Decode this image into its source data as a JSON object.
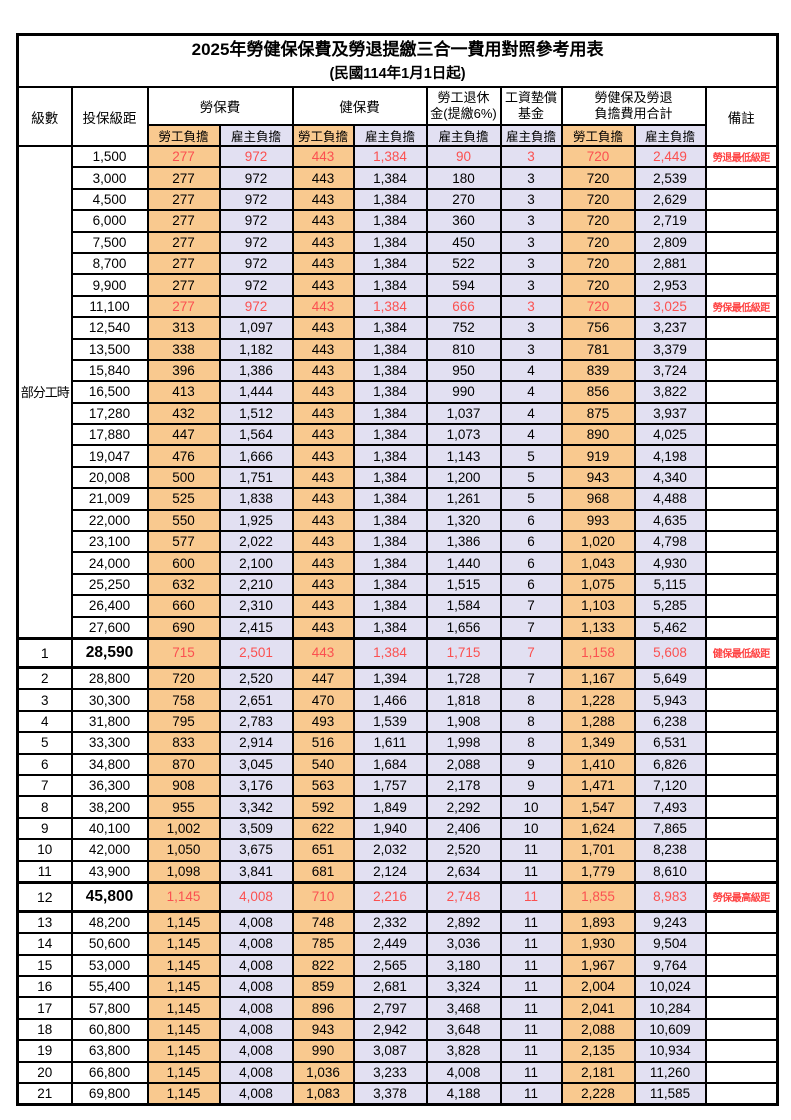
{
  "title": "2025年勞健保保費及勞退提繳三合一費用對照參考用表",
  "subtitle": "(民國114年1月1日起)",
  "columns": {
    "level": "級數",
    "bracket": "投保級距",
    "labor_insurance": "勞保費",
    "health_insurance": "健保費",
    "pension_line1": "勞工退休",
    "pension_line2": "金(提繳6%)",
    "wage_fund_line1": "工資墊償",
    "wage_fund_line2": "基金",
    "total_line1": "勞健保及勞退",
    "total_line2": "負擔費用合計",
    "remark": "備註",
    "employee_share": "勞工負擔",
    "employer_share": "雇主負擔"
  },
  "colors": {
    "employee_share_bg": "#f9c98f",
    "employer_share_bg": "#e2e0f2",
    "highlight_value_red": "#fb5050",
    "remark_red": "#ff4545",
    "border": "#000000"
  },
  "part_time": {
    "label": "部分工時",
    "row_count": 23
  },
  "value_column_pattern": [
    "emp",
    "er",
    "emp",
    "er",
    "er",
    "er",
    "emp",
    "er"
  ],
  "rows": [
    {
      "level": "",
      "bracket": "1,500",
      "values": [
        "277",
        "972",
        "443",
        "1,384",
        "90",
        "3",
        "720",
        "2,449"
      ],
      "remark": "勞退最低級距",
      "red": true
    },
    {
      "level": "",
      "bracket": "3,000",
      "values": [
        "277",
        "972",
        "443",
        "1,384",
        "180",
        "3",
        "720",
        "2,539"
      ],
      "remark": ""
    },
    {
      "level": "",
      "bracket": "4,500",
      "values": [
        "277",
        "972",
        "443",
        "1,384",
        "270",
        "3",
        "720",
        "2,629"
      ],
      "remark": ""
    },
    {
      "level": "",
      "bracket": "6,000",
      "values": [
        "277",
        "972",
        "443",
        "1,384",
        "360",
        "3",
        "720",
        "2,719"
      ],
      "remark": ""
    },
    {
      "level": "",
      "bracket": "7,500",
      "values": [
        "277",
        "972",
        "443",
        "1,384",
        "450",
        "3",
        "720",
        "2,809"
      ],
      "remark": ""
    },
    {
      "level": "",
      "bracket": "8,700",
      "values": [
        "277",
        "972",
        "443",
        "1,384",
        "522",
        "3",
        "720",
        "2,881"
      ],
      "remark": ""
    },
    {
      "level": "",
      "bracket": "9,900",
      "values": [
        "277",
        "972",
        "443",
        "1,384",
        "594",
        "3",
        "720",
        "2,953"
      ],
      "remark": ""
    },
    {
      "level": "",
      "bracket": "11,100",
      "values": [
        "277",
        "972",
        "443",
        "1,384",
        "666",
        "3",
        "720",
        "3,025"
      ],
      "remark": "勞保最低級距",
      "red": true
    },
    {
      "level": "",
      "bracket": "12,540",
      "values": [
        "313",
        "1,097",
        "443",
        "1,384",
        "752",
        "3",
        "756",
        "3,237"
      ],
      "remark": ""
    },
    {
      "level": "",
      "bracket": "13,500",
      "values": [
        "338",
        "1,182",
        "443",
        "1,384",
        "810",
        "3",
        "781",
        "3,379"
      ],
      "remark": ""
    },
    {
      "level": "",
      "bracket": "15,840",
      "values": [
        "396",
        "1,386",
        "443",
        "1,384",
        "950",
        "4",
        "839",
        "3,724"
      ],
      "remark": ""
    },
    {
      "level": "",
      "bracket": "16,500",
      "values": [
        "413",
        "1,444",
        "443",
        "1,384",
        "990",
        "4",
        "856",
        "3,822"
      ],
      "remark": ""
    },
    {
      "level": "",
      "bracket": "17,280",
      "values": [
        "432",
        "1,512",
        "443",
        "1,384",
        "1,037",
        "4",
        "875",
        "3,937"
      ],
      "remark": ""
    },
    {
      "level": "",
      "bracket": "17,880",
      "values": [
        "447",
        "1,564",
        "443",
        "1,384",
        "1,073",
        "4",
        "890",
        "4,025"
      ],
      "remark": ""
    },
    {
      "level": "",
      "bracket": "19,047",
      "values": [
        "476",
        "1,666",
        "443",
        "1,384",
        "1,143",
        "5",
        "919",
        "4,198"
      ],
      "remark": ""
    },
    {
      "level": "",
      "bracket": "20,008",
      "values": [
        "500",
        "1,751",
        "443",
        "1,384",
        "1,200",
        "5",
        "943",
        "4,340"
      ],
      "remark": ""
    },
    {
      "level": "",
      "bracket": "21,009",
      "values": [
        "525",
        "1,838",
        "443",
        "1,384",
        "1,261",
        "5",
        "968",
        "4,488"
      ],
      "remark": ""
    },
    {
      "level": "",
      "bracket": "22,000",
      "values": [
        "550",
        "1,925",
        "443",
        "1,384",
        "1,320",
        "6",
        "993",
        "4,635"
      ],
      "remark": ""
    },
    {
      "level": "",
      "bracket": "23,100",
      "values": [
        "577",
        "2,022",
        "443",
        "1,384",
        "1,386",
        "6",
        "1,020",
        "4,798"
      ],
      "remark": ""
    },
    {
      "level": "",
      "bracket": "24,000",
      "values": [
        "600",
        "2,100",
        "443",
        "1,384",
        "1,440",
        "6",
        "1,043",
        "4,930"
      ],
      "remark": ""
    },
    {
      "level": "",
      "bracket": "25,250",
      "values": [
        "632",
        "2,210",
        "443",
        "1,384",
        "1,515",
        "6",
        "1,075",
        "5,115"
      ],
      "remark": ""
    },
    {
      "level": "",
      "bracket": "26,400",
      "values": [
        "660",
        "2,310",
        "443",
        "1,384",
        "1,584",
        "7",
        "1,103",
        "5,285"
      ],
      "remark": ""
    },
    {
      "level": "",
      "bracket": "27,600",
      "values": [
        "690",
        "2,415",
        "443",
        "1,384",
        "1,656",
        "7",
        "1,133",
        "5,462"
      ],
      "remark": ""
    },
    {
      "level": "1",
      "bracket": "28,590",
      "values": [
        "715",
        "2,501",
        "443",
        "1,384",
        "1,715",
        "7",
        "1,158",
        "5,608"
      ],
      "remark": "健保最低級距",
      "red": true,
      "big": true
    },
    {
      "level": "2",
      "bracket": "28,800",
      "values": [
        "720",
        "2,520",
        "447",
        "1,394",
        "1,728",
        "7",
        "1,167",
        "5,649"
      ],
      "remark": ""
    },
    {
      "level": "3",
      "bracket": "30,300",
      "values": [
        "758",
        "2,651",
        "470",
        "1,466",
        "1,818",
        "8",
        "1,228",
        "5,943"
      ],
      "remark": ""
    },
    {
      "level": "4",
      "bracket": "31,800",
      "values": [
        "795",
        "2,783",
        "493",
        "1,539",
        "1,908",
        "8",
        "1,288",
        "6,238"
      ],
      "remark": ""
    },
    {
      "level": "5",
      "bracket": "33,300",
      "values": [
        "833",
        "2,914",
        "516",
        "1,611",
        "1,998",
        "8",
        "1,349",
        "6,531"
      ],
      "remark": ""
    },
    {
      "level": "6",
      "bracket": "34,800",
      "values": [
        "870",
        "3,045",
        "540",
        "1,684",
        "2,088",
        "9",
        "1,410",
        "6,826"
      ],
      "remark": ""
    },
    {
      "level": "7",
      "bracket": "36,300",
      "values": [
        "908",
        "3,176",
        "563",
        "1,757",
        "2,178",
        "9",
        "1,471",
        "7,120"
      ],
      "remark": ""
    },
    {
      "level": "8",
      "bracket": "38,200",
      "values": [
        "955",
        "3,342",
        "592",
        "1,849",
        "2,292",
        "10",
        "1,547",
        "7,493"
      ],
      "remark": ""
    },
    {
      "level": "9",
      "bracket": "40,100",
      "values": [
        "1,002",
        "3,509",
        "622",
        "1,940",
        "2,406",
        "10",
        "1,624",
        "7,865"
      ],
      "remark": ""
    },
    {
      "level": "10",
      "bracket": "42,000",
      "values": [
        "1,050",
        "3,675",
        "651",
        "2,032",
        "2,520",
        "11",
        "1,701",
        "8,238"
      ],
      "remark": ""
    },
    {
      "level": "11",
      "bracket": "43,900",
      "values": [
        "1,098",
        "3,841",
        "681",
        "2,124",
        "2,634",
        "11",
        "1,779",
        "8,610"
      ],
      "remark": ""
    },
    {
      "level": "12",
      "bracket": "45,800",
      "values": [
        "1,145",
        "4,008",
        "710",
        "2,216",
        "2,748",
        "11",
        "1,855",
        "8,983"
      ],
      "remark": "勞保最高級距",
      "red": true,
      "big": true
    },
    {
      "level": "13",
      "bracket": "48,200",
      "values": [
        "1,145",
        "4,008",
        "748",
        "2,332",
        "2,892",
        "11",
        "1,893",
        "9,243"
      ],
      "remark": ""
    },
    {
      "level": "14",
      "bracket": "50,600",
      "values": [
        "1,145",
        "4,008",
        "785",
        "2,449",
        "3,036",
        "11",
        "1,930",
        "9,504"
      ],
      "remark": ""
    },
    {
      "level": "15",
      "bracket": "53,000",
      "values": [
        "1,145",
        "4,008",
        "822",
        "2,565",
        "3,180",
        "11",
        "1,967",
        "9,764"
      ],
      "remark": ""
    },
    {
      "level": "16",
      "bracket": "55,400",
      "values": [
        "1,145",
        "4,008",
        "859",
        "2,681",
        "3,324",
        "11",
        "2,004",
        "10,024"
      ],
      "remark": ""
    },
    {
      "level": "17",
      "bracket": "57,800",
      "values": [
        "1,145",
        "4,008",
        "896",
        "2,797",
        "3,468",
        "11",
        "2,041",
        "10,284"
      ],
      "remark": ""
    },
    {
      "level": "18",
      "bracket": "60,800",
      "values": [
        "1,145",
        "4,008",
        "943",
        "2,942",
        "3,648",
        "11",
        "2,088",
        "10,609"
      ],
      "remark": ""
    },
    {
      "level": "19",
      "bracket": "63,800",
      "values": [
        "1,145",
        "4,008",
        "990",
        "3,087",
        "3,828",
        "11",
        "2,135",
        "10,934"
      ],
      "remark": ""
    },
    {
      "level": "20",
      "bracket": "66,800",
      "values": [
        "1,145",
        "4,008",
        "1,036",
        "3,233",
        "4,008",
        "11",
        "2,181",
        "11,260"
      ],
      "remark": ""
    },
    {
      "level": "21",
      "bracket": "69,800",
      "values": [
        "1,145",
        "4,008",
        "1,083",
        "3,378",
        "4,188",
        "11",
        "2,228",
        "11,585"
      ],
      "remark": ""
    }
  ]
}
